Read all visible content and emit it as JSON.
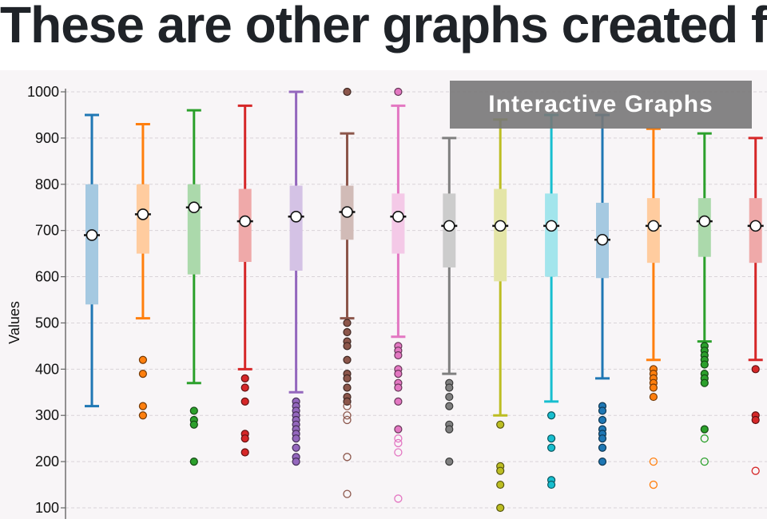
{
  "page": {
    "heading": "These are other graphs created f"
  },
  "banner": {
    "label": "Interactive Graphs"
  },
  "chart_data": {
    "type": "boxplot",
    "ylabel": "Values",
    "ylim": [
      100,
      1000
    ],
    "yticks": [
      100,
      200,
      300,
      400,
      500,
      600,
      700,
      800,
      900,
      1000
    ],
    "grid": true,
    "colors": [
      "#1f77b4",
      "#ff7f0e",
      "#2ca02c",
      "#d62728",
      "#9467bd",
      "#8c564b",
      "#e377c2",
      "#7f7f7f",
      "#bcbd22",
      "#17becf",
      "#1f77b4",
      "#ff7f0e",
      "#2ca02c",
      "#d62728"
    ],
    "boxes": [
      {
        "whisker_low": 320,
        "q1": 540,
        "median": 690,
        "q3": 800,
        "whisker_high": 950,
        "mean": 690,
        "outliers": []
      },
      {
        "whisker_low": 510,
        "q1": 650,
        "median": 735,
        "q3": 800,
        "whisker_high": 930,
        "mean": 735,
        "outliers": [
          420,
          390,
          320,
          300
        ]
      },
      {
        "whisker_low": 370,
        "q1": 605,
        "median": 750,
        "q3": 800,
        "whisker_high": 960,
        "mean": 750,
        "outliers": [
          310,
          290,
          280,
          200
        ]
      },
      {
        "whisker_low": 400,
        "q1": 632,
        "median": 720,
        "q3": 790,
        "whisker_high": 970,
        "mean": 720,
        "outliers": [
          380,
          360,
          330,
          260,
          250,
          220
        ]
      },
      {
        "whisker_low": 350,
        "q1": 613,
        "median": 730,
        "q3": 797,
        "whisker_high": 1000,
        "mean": 730,
        "outliers": [
          330,
          320,
          310,
          300,
          290,
          280,
          270,
          260,
          250,
          230,
          210,
          200
        ]
      },
      {
        "whisker_low": 510,
        "q1": 680,
        "median": 740,
        "q3": 797,
        "whisker_high": 910,
        "mean": 740,
        "outliers": [
          1000,
          500,
          480,
          460,
          450,
          420,
          390,
          380,
          360,
          340,
          330
        ],
        "hollow_outliers": [
          320,
          300,
          290,
          210,
          130
        ]
      },
      {
        "whisker_low": 470,
        "q1": 650,
        "median": 730,
        "q3": 780,
        "whisker_high": 970,
        "mean": 730,
        "outliers": [
          1000,
          450,
          440,
          430,
          400,
          390,
          370,
          360,
          330,
          270
        ],
        "hollow_outliers": [
          250,
          240,
          220,
          120
        ]
      },
      {
        "whisker_low": 390,
        "q1": 620,
        "median": 710,
        "q3": 780,
        "whisker_high": 900,
        "mean": 710,
        "outliers": [
          370,
          360,
          340,
          320,
          280,
          270,
          200
        ]
      },
      {
        "whisker_low": 300,
        "q1": 590,
        "median": 710,
        "q3": 790,
        "whisker_high": 940,
        "mean": 710,
        "outliers": [
          280,
          190,
          180,
          150,
          100
        ]
      },
      {
        "whisker_low": 330,
        "q1": 600,
        "median": 710,
        "q3": 780,
        "whisker_high": 950,
        "mean": 710,
        "outliers": [
          300,
          250,
          230,
          160,
          150
        ]
      },
      {
        "whisker_low": 380,
        "q1": 597,
        "median": 680,
        "q3": 760,
        "whisker_high": 950,
        "mean": 680,
        "outliers": [
          320,
          310,
          290,
          270,
          260,
          250,
          230,
          200
        ]
      },
      {
        "whisker_low": 420,
        "q1": 630,
        "median": 710,
        "q3": 770,
        "whisker_high": 920,
        "mean": 710,
        "outliers": [
          400,
          390,
          380,
          370,
          360,
          340
        ],
        "hollow_outliers": [
          200,
          150
        ]
      },
      {
        "whisker_low": 460,
        "q1": 643,
        "median": 720,
        "q3": 770,
        "whisker_high": 910,
        "mean": 720,
        "outliers": [
          450,
          440,
          430,
          420,
          410,
          390,
          380,
          370,
          270
        ],
        "hollow_outliers": [
          250,
          200
        ]
      },
      {
        "whisker_low": 420,
        "q1": 630,
        "median": 710,
        "q3": 770,
        "whisker_high": 900,
        "mean": 710,
        "outliers": [
          400,
          300,
          290
        ],
        "hollow_outliers": [
          180
        ]
      }
    ]
  }
}
